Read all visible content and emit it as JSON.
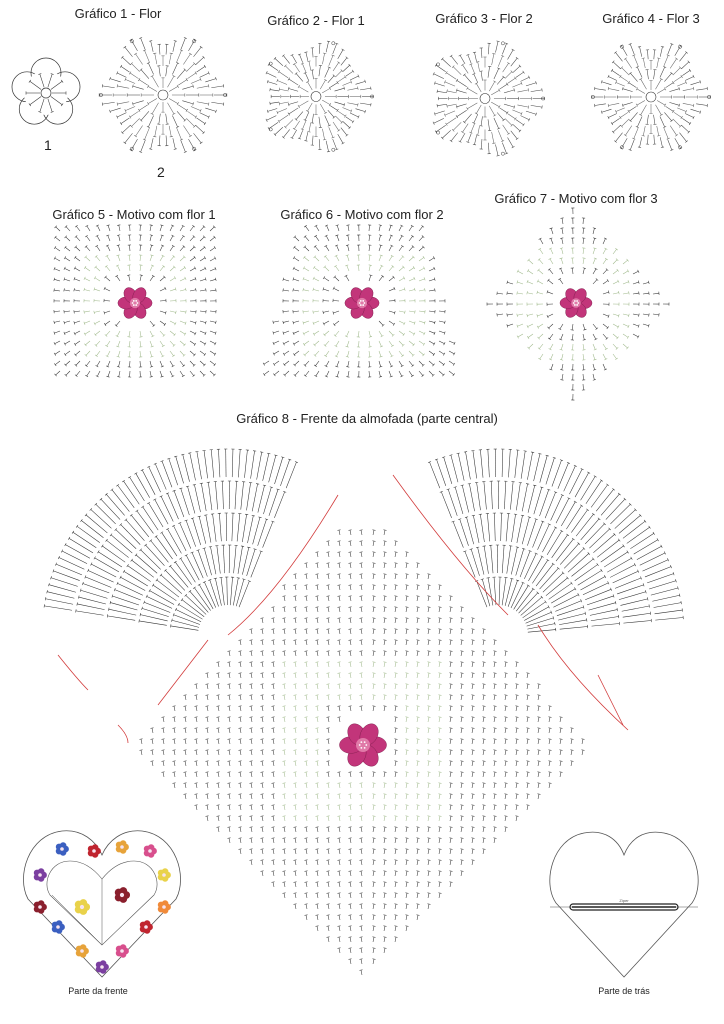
{
  "titles": {
    "g1": "Gráfico 1 - Flor",
    "g2": "Gráfico 2 - Flor 1",
    "g3": "Gráfico 3 - Flor 2",
    "g4": "Gráfico 4 - Flor 3",
    "g5": "Gráfico 5 - Motivo com flor 1",
    "g6": "Gráfico 6 - Motivo com flor 2",
    "g7": "Gráfico 7 - Motivo com flor 3",
    "g8": "Gráfico 8 - Frente da almofada (parte central)"
  },
  "flower_numbers": [
    "1",
    "2"
  ],
  "bottom_labels": {
    "front": "Parte da frente",
    "back": "Parte de trás",
    "zipper": "Zíper"
  },
  "colors": {
    "ink": "#333333",
    "flower_pink": "#c2357a",
    "flower_light": "#e07aa8",
    "red_accent": "#d23a3a",
    "green_motif": "#9fb88a",
    "patch_colors": [
      "#3b5fc0",
      "#c0242f",
      "#e7a33a",
      "#d84f8d",
      "#7b3fa0",
      "#e9d24a",
      "#8a1f2d",
      "#f08a3a"
    ]
  }
}
